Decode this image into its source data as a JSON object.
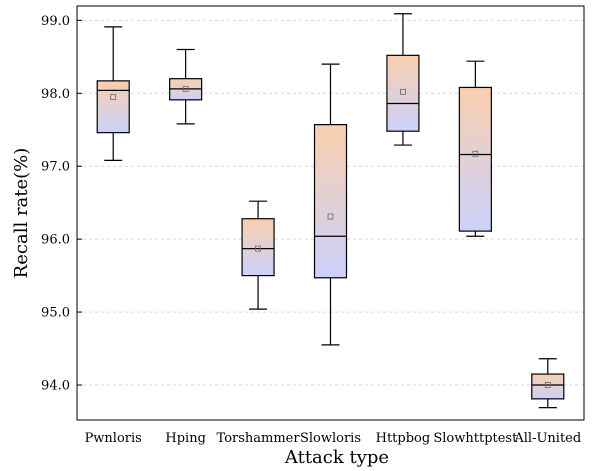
{
  "chart_data": {
    "type": "box",
    "title": "",
    "xlabel": "Attack type",
    "ylabel": "Recall rate(%)",
    "ylim": [
      93.5,
      99.2
    ],
    "yticks": [
      94.0,
      95.0,
      96.0,
      97.0,
      98.0,
      99.0
    ],
    "ytick_labels": [
      "94.0",
      "95.0",
      "96.0",
      "97.0",
      "98.0",
      "99.0"
    ],
    "grid": "horizontal dashed",
    "categories": [
      "Pwnloris",
      "Hping",
      "Torshammer",
      "Slowloris",
      "Httpbog",
      "Slowhttptest",
      "All-United"
    ],
    "boxes": [
      {
        "whisker_low": 97.08,
        "q1": 97.46,
        "median": 98.04,
        "q3": 98.17,
        "whisker_high": 98.91,
        "mean": 97.95
      },
      {
        "whisker_low": 97.58,
        "q1": 97.91,
        "median": 98.06,
        "q3": 98.2,
        "whisker_high": 98.6,
        "mean": 98.06
      },
      {
        "whisker_low": 95.04,
        "q1": 95.5,
        "median": 95.87,
        "q3": 96.28,
        "whisker_high": 96.52,
        "mean": 95.87
      },
      {
        "whisker_low": 94.55,
        "q1": 95.47,
        "median": 96.04,
        "q3": 97.57,
        "whisker_high": 98.4,
        "mean": 96.31
      },
      {
        "whisker_low": 97.29,
        "q1": 97.48,
        "median": 97.86,
        "q3": 98.52,
        "whisker_high": 99.09,
        "mean": 98.02
      },
      {
        "whisker_low": 96.04,
        "q1": 96.11,
        "median": 97.16,
        "q3": 98.08,
        "whisker_high": 98.44,
        "mean": 97.17
      },
      {
        "whisker_low": 93.69,
        "q1": 93.81,
        "median": 94.0,
        "q3": 94.15,
        "whisker_high": 94.36,
        "mean": 94.0
      }
    ],
    "colors": {
      "gradient_top": "#f9cfae",
      "gradient_bottom": "#cbd1fb",
      "line": "#000000",
      "grid": "#d9d9d9",
      "mean_marker": "#666666"
    }
  }
}
